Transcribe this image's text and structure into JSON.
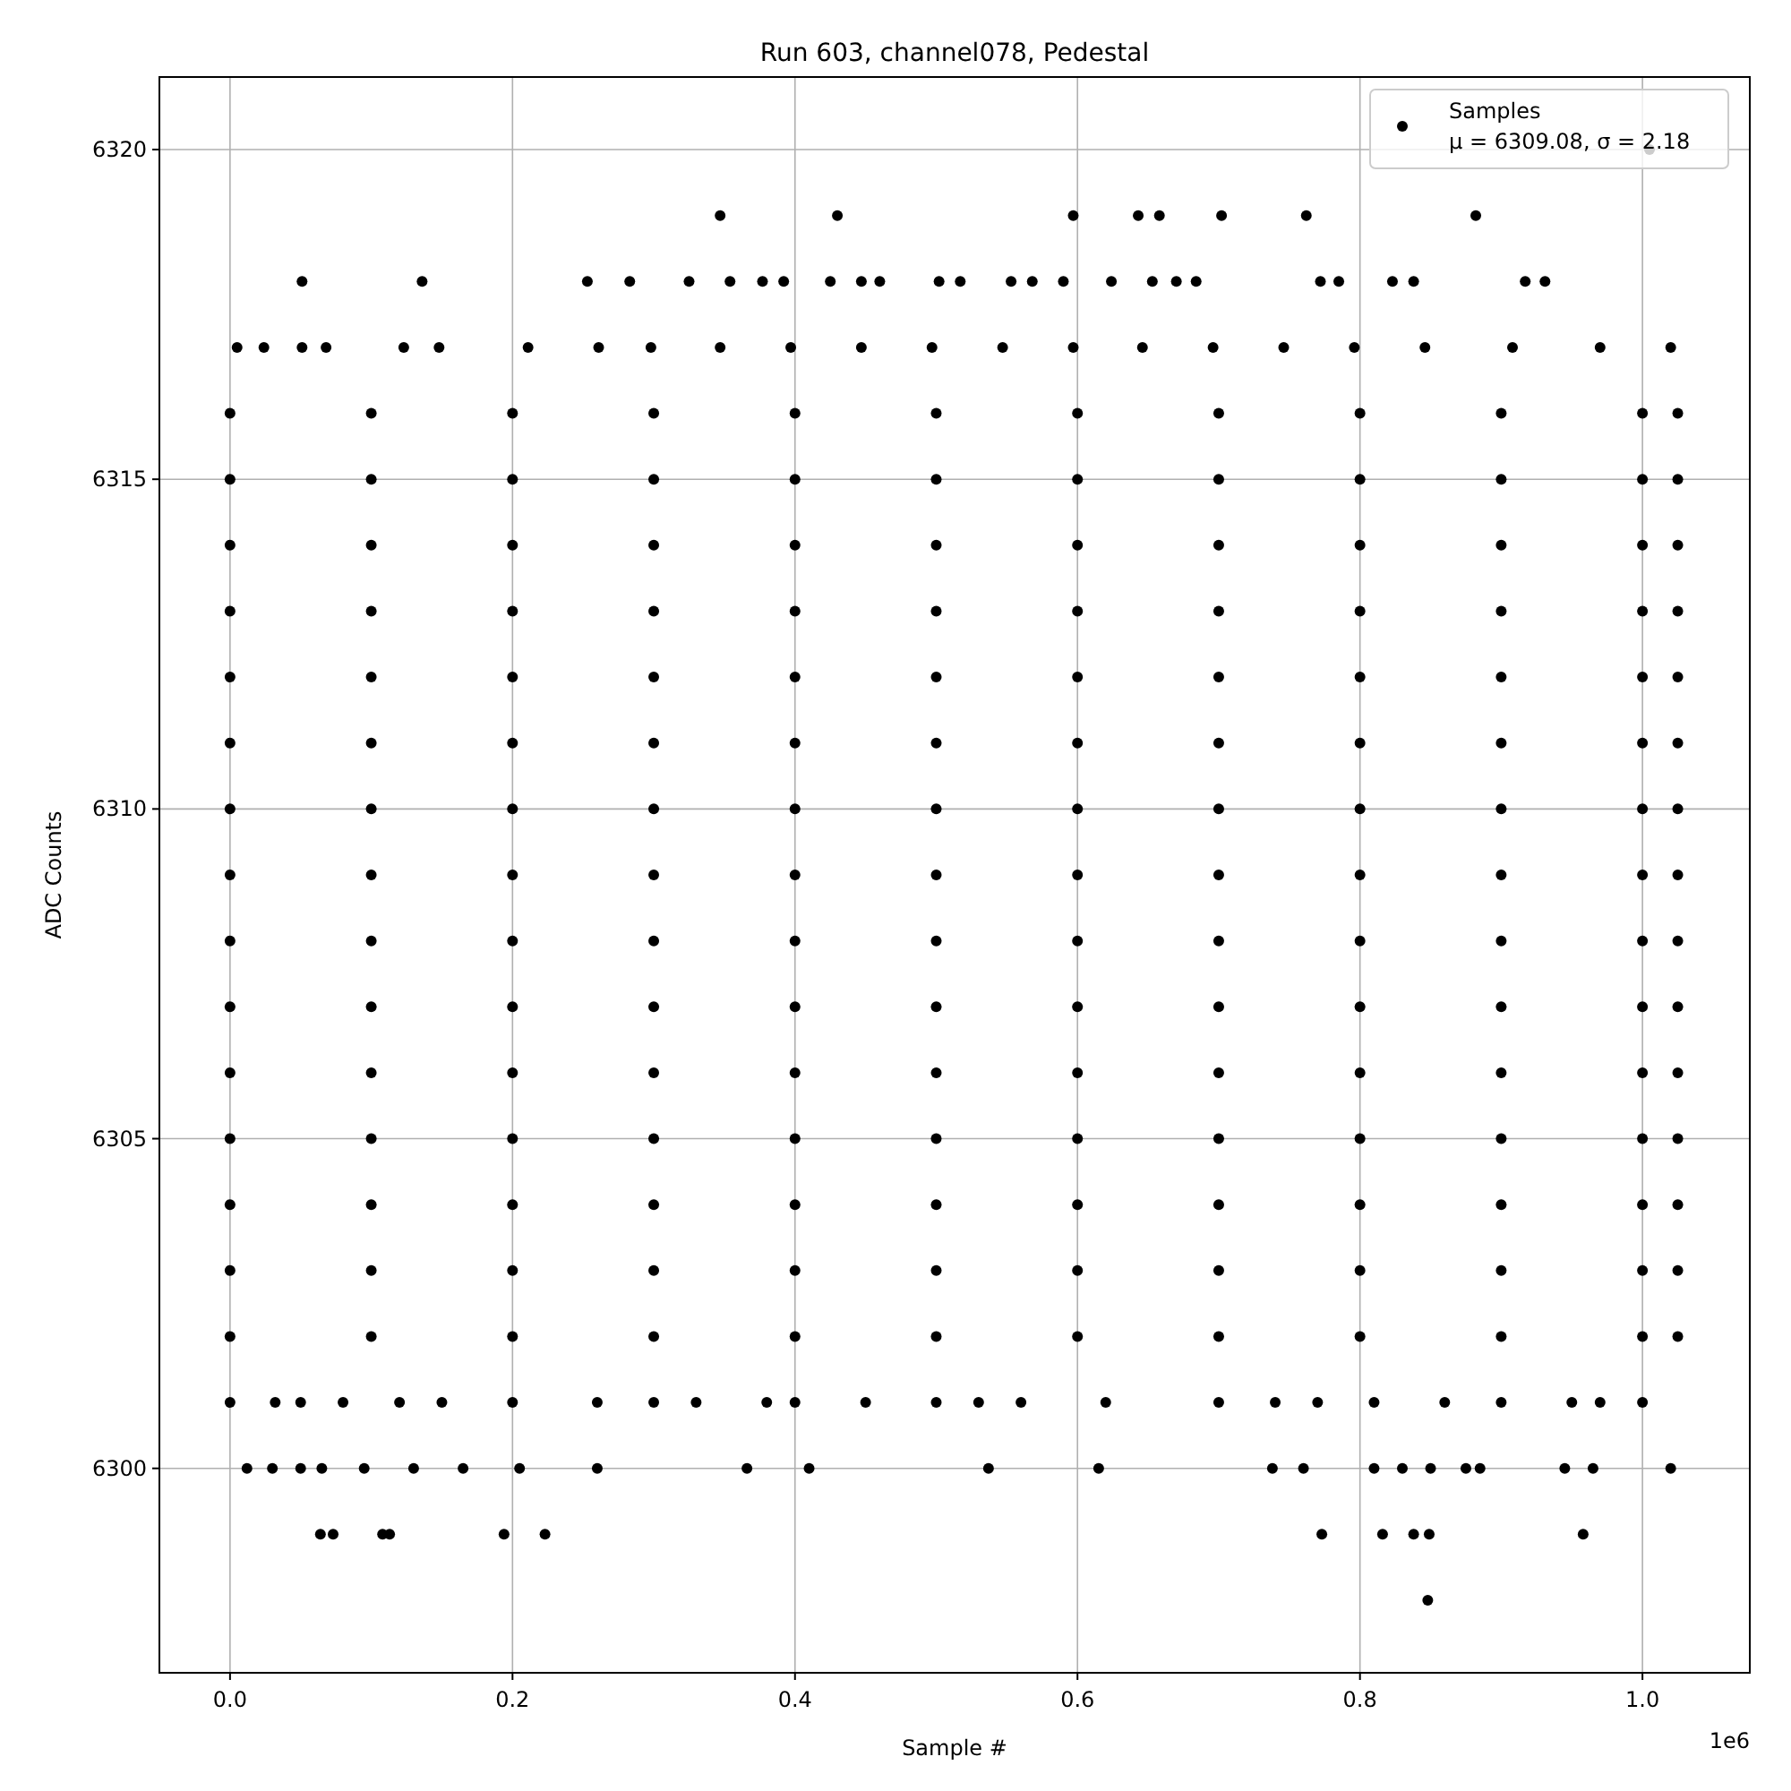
{
  "chart_data": {
    "type": "scatter",
    "title": "Run 603, channel078, Pedestal",
    "xlabel": "Sample #",
    "ylabel": "ADC Counts",
    "annotations": [
      "1e6"
    ],
    "xlim": [
      -0.05,
      1.076
    ],
    "ylim": [
      6296.9,
      6321.1
    ],
    "xticks": [
      {
        "value": 0,
        "label": "0.0"
      },
      0.2,
      0.4,
      0.6,
      0.8,
      {
        "value": 1,
        "label": "1.0"
      }
    ],
    "yticks": [
      6300,
      6305,
      6310,
      6315,
      6320
    ],
    "grid": true,
    "legend": "top right",
    "marker": "circle",
    "series": [
      {
        "name": "Samples\nμ = 6309.08, σ = 2.18",
        "color": "#000000",
        "x": [
          0,
          0.1,
          0.2,
          0.3,
          0.4,
          0.5,
          0.6,
          0.7,
          0.8,
          0.9,
          1.0,
          1.025,
          0,
          0.1,
          0.2,
          0.3,
          0.4,
          0.5,
          0.6,
          0.7,
          0.8,
          0.9,
          1.0,
          1.025,
          0,
          0.1,
          0.2,
          0.3,
          0.4,
          0.5,
          0.6,
          0.7,
          0.8,
          0.9,
          1.0,
          1.025,
          0,
          0.1,
          0.2,
          0.3,
          0.4,
          0.5,
          0.6,
          0.7,
          0.8,
          0.9,
          1.0,
          1.025,
          0,
          0.1,
          0.2,
          0.3,
          0.4,
          0.5,
          0.6,
          0.7,
          0.8,
          0.9,
          1.0,
          1.025,
          0,
          0.1,
          0.2,
          0.3,
          0.4,
          0.5,
          0.6,
          0.7,
          0.8,
          0.9,
          1.0,
          1.025,
          0,
          0.1,
          0.2,
          0.3,
          0.4,
          0.5,
          0.6,
          0.7,
          0.8,
          0.9,
          1.0,
          1.025,
          0,
          0.1,
          0.2,
          0.3,
          0.4,
          0.5,
          0.6,
          0.7,
          0.8,
          0.9,
          1.0,
          1.025,
          0,
          0.1,
          0.2,
          0.3,
          0.4,
          0.5,
          0.6,
          0.7,
          0.8,
          0.9,
          1.0,
          1.025,
          0,
          0.1,
          0.2,
          0.3,
          0.4,
          0.5,
          0.6,
          0.7,
          0.8,
          0.9,
          1.0,
          1.025,
          0,
          0.1,
          0.2,
          0.3,
          0.4,
          0.5,
          0.6,
          0.7,
          0.8,
          0.9,
          1.0,
          1.025,
          0,
          0.1,
          0.2,
          0.3,
          0.4,
          0.5,
          0.6,
          0.7,
          0.8,
          0.9,
          1.0,
          1.025,
          0,
          0.1,
          0.2,
          0.3,
          0.4,
          0.5,
          0.6,
          0.7,
          0.8,
          0.9,
          1.0,
          1.025,
          0,
          0.1,
          0.2,
          0.3,
          0.4,
          0.5,
          0.6,
          0.7,
          0.8,
          0.9,
          1.0,
          1.025,
          0,
          0.1,
          0.2,
          0.3,
          0.4,
          0.5,
          0.6,
          0.7,
          0.8,
          0.9,
          1.0,
          1.025,
          1.005,
          0.347,
          0.43,
          0.597,
          0.643,
          0.658,
          0.702,
          0.762,
          0.882,
          0.051,
          0.136,
          0.253,
          0.283,
          0.325,
          0.354,
          0.377,
          0.392,
          0.425,
          0.447,
          0.46,
          0.502,
          0.517,
          0.553,
          0.568,
          0.59,
          0.624,
          0.653,
          0.67,
          0.684,
          0.772,
          0.785,
          0.823,
          0.838,
          0.917,
          0.931,
          0.005,
          0.024,
          0.051,
          0.068,
          0.123,
          0.148,
          0.211,
          0.261,
          0.298,
          0.347,
          0.397,
          0.447,
          0.497,
          0.547,
          0.597,
          0.646,
          0.696,
          0.746,
          0.796,
          0.846,
          0.908,
          0.97,
          1.02,
          0,
          0.032,
          0.05,
          0.08,
          0.12,
          0.15,
          0.2,
          0.26,
          0.3,
          0.33,
          0.38,
          0.4,
          0.45,
          0.5,
          0.53,
          0.56,
          0.62,
          0.7,
          0.74,
          0.77,
          0.81,
          0.86,
          0.9,
          0.95,
          0.97,
          1.0,
          0.012,
          0.03,
          0.05,
          0.065,
          0.095,
          0.13,
          0.165,
          0.205,
          0.26,
          0.366,
          0.41,
          0.537,
          0.615,
          0.738,
          0.76,
          0.81,
          0.83,
          0.85,
          0.875,
          0.885,
          0.945,
          0.965,
          1.02,
          0.064,
          0.073,
          0.108,
          0.113,
          0.194,
          0.223,
          0.773,
          0.816,
          0.838,
          0.849,
          0.958,
          0.848
        ],
        "values": [
          6302,
          6302,
          6302,
          6302,
          6302,
          6302,
          6302,
          6302,
          6302,
          6302,
          6302,
          6302,
          6303,
          6303,
          6303,
          6303,
          6303,
          6303,
          6303,
          6303,
          6303,
          6303,
          6303,
          6303,
          6304,
          6304,
          6304,
          6304,
          6304,
          6304,
          6304,
          6304,
          6304,
          6304,
          6304,
          6304,
          6305,
          6305,
          6305,
          6305,
          6305,
          6305,
          6305,
          6305,
          6305,
          6305,
          6305,
          6305,
          6306,
          6306,
          6306,
          6306,
          6306,
          6306,
          6306,
          6306,
          6306,
          6306,
          6306,
          6306,
          6307,
          6307,
          6307,
          6307,
          6307,
          6307,
          6307,
          6307,
          6307,
          6307,
          6307,
          6307,
          6308,
          6308,
          6308,
          6308,
          6308,
          6308,
          6308,
          6308,
          6308,
          6308,
          6308,
          6308,
          6309,
          6309,
          6309,
          6309,
          6309,
          6309,
          6309,
          6309,
          6309,
          6309,
          6309,
          6309,
          6310,
          6310,
          6310,
          6310,
          6310,
          6310,
          6310,
          6310,
          6310,
          6310,
          6310,
          6310,
          6311,
          6311,
          6311,
          6311,
          6311,
          6311,
          6311,
          6311,
          6311,
          6311,
          6311,
          6311,
          6312,
          6312,
          6312,
          6312,
          6312,
          6312,
          6312,
          6312,
          6312,
          6312,
          6312,
          6312,
          6313,
          6313,
          6313,
          6313,
          6313,
          6313,
          6313,
          6313,
          6313,
          6313,
          6313,
          6313,
          6314,
          6314,
          6314,
          6314,
          6314,
          6314,
          6314,
          6314,
          6314,
          6314,
          6314,
          6314,
          6315,
          6315,
          6315,
          6315,
          6315,
          6315,
          6315,
          6315,
          6315,
          6315,
          6315,
          6315,
          6316,
          6316,
          6316,
          6316,
          6316,
          6316,
          6316,
          6316,
          6316,
          6316,
          6316,
          6316,
          6320,
          6319,
          6319,
          6319,
          6319,
          6319,
          6319,
          6319,
          6319,
          6318,
          6318,
          6318,
          6318,
          6318,
          6318,
          6318,
          6318,
          6318,
          6318,
          6318,
          6318,
          6318,
          6318,
          6318,
          6318,
          6318,
          6318,
          6318,
          6318,
          6318,
          6318,
          6318,
          6318,
          6318,
          6318,
          6317,
          6317,
          6317,
          6317,
          6317,
          6317,
          6317,
          6317,
          6317,
          6317,
          6317,
          6317,
          6317,
          6317,
          6317,
          6317,
          6317,
          6317,
          6317,
          6317,
          6317,
          6317,
          6317,
          6301,
          6301,
          6301,
          6301,
          6301,
          6301,
          6301,
          6301,
          6301,
          6301,
          6301,
          6301,
          6301,
          6301,
          6301,
          6301,
          6301,
          6301,
          6301,
          6301,
          6301,
          6301,
          6301,
          6301,
          6301,
          6301,
          6300,
          6300,
          6300,
          6300,
          6300,
          6300,
          6300,
          6300,
          6300,
          6300,
          6300,
          6300,
          6300,
          6300,
          6300,
          6300,
          6300,
          6300,
          6300,
          6300,
          6300,
          6300,
          6300,
          6299,
          6299,
          6299,
          6299,
          6299,
          6299,
          6299,
          6299,
          6299,
          6299,
          6299,
          6298
        ]
      }
    ]
  }
}
